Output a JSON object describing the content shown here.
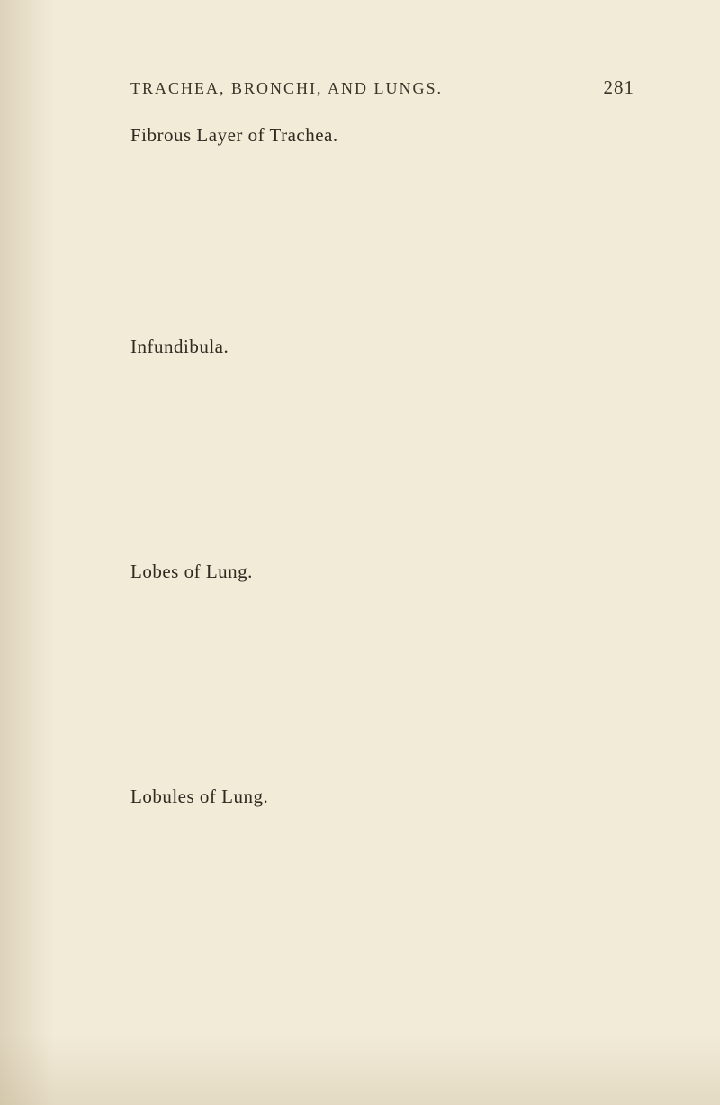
{
  "header": {
    "title": "TRACHEA, BRONCHI, AND LUNGS.",
    "page_number": "281"
  },
  "entries": {
    "entry_1": "Fibrous Layer of Trachea.",
    "entry_2": "Infundibula.",
    "entry_3": "Lobes of Lung.",
    "entry_4": "Lobules of Lung."
  },
  "colors": {
    "background": "#f2ebd8",
    "text": "#3a3428",
    "body_text": "#2e2a20"
  },
  "typography": {
    "header_fontsize": 18,
    "pagenum_fontsize": 21,
    "entry_fontsize": 21,
    "header_letterspacing": 2
  }
}
